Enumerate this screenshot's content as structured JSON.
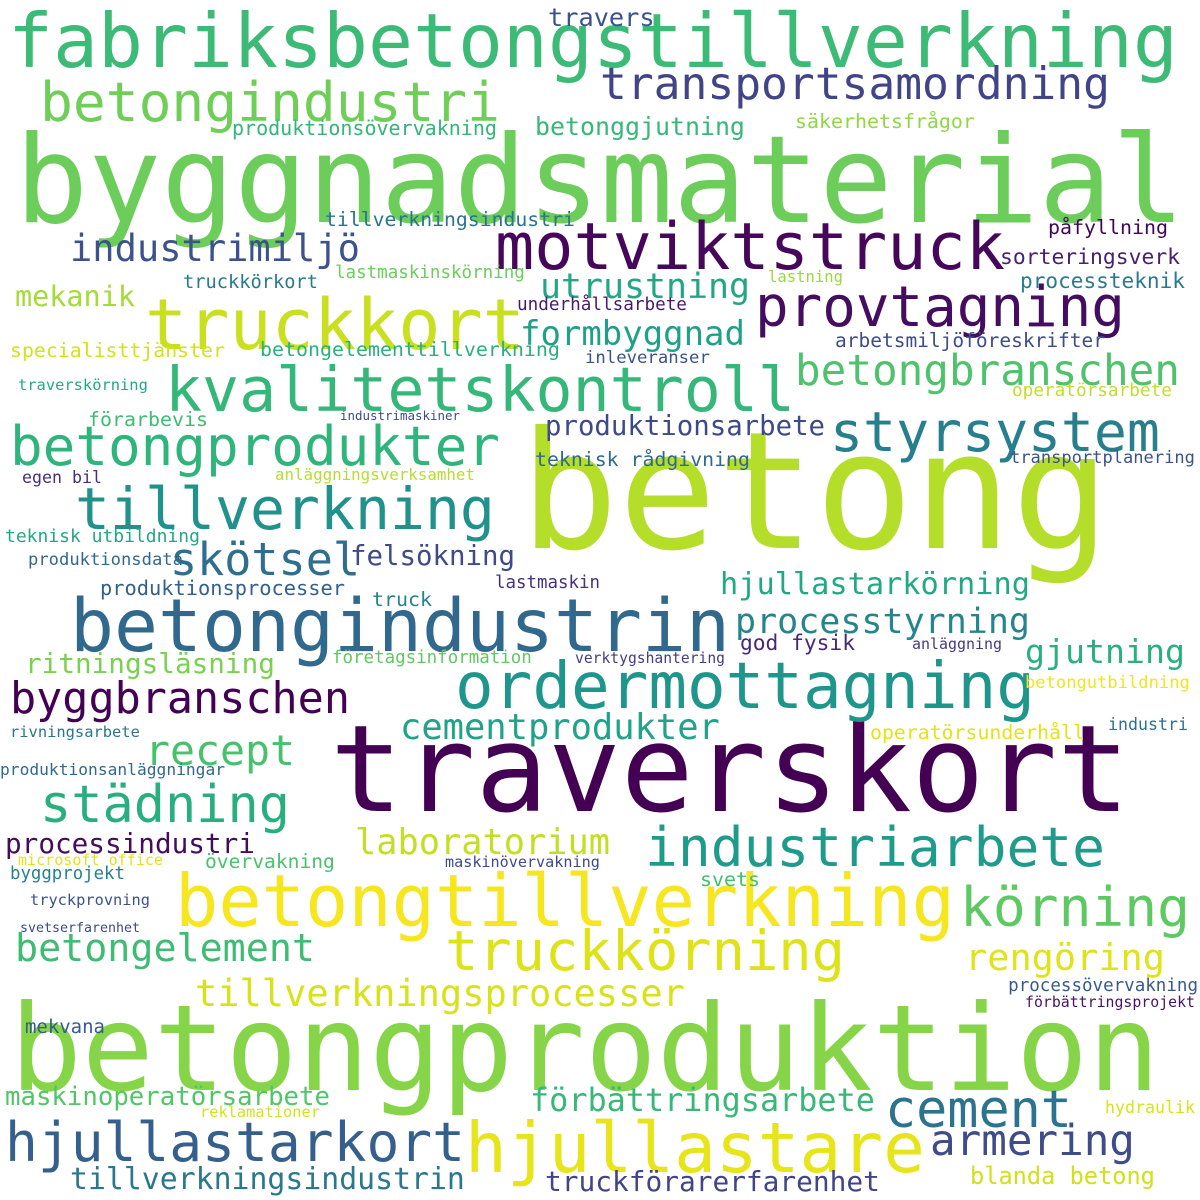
{
  "words": [
    {
      "text": "betong",
      "color": "#b5de2b"
    },
    {
      "text": "byggnadsmaterial",
      "color": "#6ccd5a"
    },
    {
      "text": "fabriksbetongstillverkning",
      "color": "#3bbb75"
    },
    {
      "text": "traverskort",
      "color": "#440154"
    },
    {
      "text": "betongproduktion",
      "color": "#86d549"
    },
    {
      "text": "betongindustrin",
      "color": "#31688e"
    },
    {
      "text": "betongtillverkning",
      "color": "#f5e61f"
    },
    {
      "text": "motviktstruck",
      "color": "#46075a"
    },
    {
      "text": "truckkort",
      "color": "#c8e020"
    },
    {
      "text": "kvalitetskontroll",
      "color": "#35b779"
    },
    {
      "text": "betongindustri",
      "color": "#6ece58"
    },
    {
      "text": "ordermottagning",
      "color": "#1f968b"
    },
    {
      "text": "hjullastare",
      "color": "#e7e419"
    },
    {
      "text": "betongprodukter",
      "color": "#2fb47c"
    },
    {
      "text": "transportsamordning",
      "color": "#414487"
    },
    {
      "text": "tillverkning",
      "color": "#21918c"
    },
    {
      "text": "provtagning",
      "color": "#440d60"
    },
    {
      "text": "styrsystem",
      "color": "#277f8e"
    },
    {
      "text": "industriarbete",
      "color": "#1e9b8a"
    },
    {
      "text": "truckkörning",
      "color": "#dde318"
    },
    {
      "text": "hjullastarkort",
      "color": "#355f8d"
    },
    {
      "text": "körning",
      "color": "#5ec962"
    },
    {
      "text": "byggbranschen",
      "color": "#440154"
    },
    {
      "text": "städning",
      "color": "#29af7f"
    },
    {
      "text": "betongbranschen",
      "color": "#4ec36b"
    },
    {
      "text": "cement",
      "color": "#2c738e"
    },
    {
      "text": "betongelement",
      "color": "#3fbc73"
    },
    {
      "text": "tillverkningsprocesser",
      "color": "#d8e219"
    },
    {
      "text": "armering",
      "color": "#3e4c8a"
    },
    {
      "text": "industrimiljö",
      "color": "#3b528b"
    },
    {
      "text": "processtyrning",
      "color": "#25858e"
    },
    {
      "text": "recept",
      "color": "#48c16e"
    },
    {
      "text": "skötsel",
      "color": "#2e6f8e"
    },
    {
      "text": "utrustning",
      "color": "#22a785"
    },
    {
      "text": "formbyggnad",
      "color": "#1fa188"
    },
    {
      "text": "cementprodukter",
      "color": "#20a386"
    },
    {
      "text": "hjullastarkörning",
      "color": "#22a884"
    },
    {
      "text": "gjutning",
      "color": "#2ab07f"
    },
    {
      "text": "laboratorium",
      "color": "#c2df23"
    },
    {
      "text": "rengöring",
      "color": "#dfe318"
    },
    {
      "text": "tillverkningsindustrin",
      "color": "#2a788e"
    },
    {
      "text": "förbättringsarbete",
      "color": "#37b878"
    },
    {
      "text": "maskinoperatörsarbete",
      "color": "#52c569"
    },
    {
      "text": "truckförarerfarenhet",
      "color": "#414487"
    },
    {
      "text": "blanda betong",
      "color": "#d0e11c"
    },
    {
      "text": "processindustri",
      "color": "#450c5e"
    },
    {
      "text": "produktionsarbete",
      "color": "#3e4989"
    },
    {
      "text": "felsökning",
      "color": "#3e4a89"
    },
    {
      "text": "ritningsläsning",
      "color": "#7ad151"
    },
    {
      "text": "mekanik",
      "color": "#a5db36"
    },
    {
      "text": "betonggjutning",
      "color": "#37b878"
    },
    {
      "text": "teknisk rådgivning",
      "color": "#31688e"
    },
    {
      "text": "produktionsprocesser",
      "color": "#34608d"
    },
    {
      "text": "god fysik",
      "color": "#472878"
    },
    {
      "text": "travers",
      "color": "#3b528b"
    },
    {
      "text": "produktionsövervakning",
      "color": "#33b67a"
    },
    {
      "text": "säkerhetsfrågor",
      "color": "#8fd744"
    },
    {
      "text": "tillverkningsindustri",
      "color": "#2c738e"
    },
    {
      "text": "påfyllning",
      "color": "#3e0751"
    },
    {
      "text": "sorteringsverk",
      "color": "#482071"
    },
    {
      "text": "processteknik",
      "color": "#297a8e"
    },
    {
      "text": "truckkörkort",
      "color": "#2a788e"
    },
    {
      "text": "lastmaskinskörning",
      "color": "#6ccd5a"
    },
    {
      "text": "lastning",
      "color": "#9dd93b"
    },
    {
      "text": "underhållsarbete",
      "color": "#481a6c"
    },
    {
      "text": "arbetsmiljöföreskrifter",
      "color": "#3e4c8a"
    },
    {
      "text": "specialisttjänster",
      "color": "#d2e21b"
    },
    {
      "text": "betongelementtillverkning",
      "color": "#2ab07f"
    },
    {
      "text": "inleveranser",
      "color": "#3b528b"
    },
    {
      "text": "traverskörning",
      "color": "#23a983"
    },
    {
      "text": "operatörsarbete",
      "color": "#c0df25"
    },
    {
      "text": "förarbevis",
      "color": "#3dbc74"
    },
    {
      "text": "industrimaskiner",
      "color": "#3e4a89"
    },
    {
      "text": "anläggningsverksamhet",
      "color": "#b5de2b"
    },
    {
      "text": "transportplanering",
      "color": "#3b528b"
    },
    {
      "text": "egen bil",
      "color": "#472d7b"
    },
    {
      "text": "teknisk utbildning",
      "color": "#22a785"
    },
    {
      "text": "produktionsdata",
      "color": "#31688e"
    },
    {
      "text": "lastmaskin",
      "color": "#46327e"
    },
    {
      "text": "truck",
      "color": "#26828e"
    },
    {
      "text": "företagsinformation",
      "color": "#5ec962"
    },
    {
      "text": "verktygshantering",
      "color": "#433e85"
    },
    {
      "text": "anläggning",
      "color": "#443983"
    },
    {
      "text": "betongutbildning",
      "color": "#f1e51d"
    },
    {
      "text": "rivningsarbete",
      "color": "#2b758e"
    },
    {
      "text": "industri",
      "color": "#2c728e"
    },
    {
      "text": "operatörsunderhåll",
      "color": "#e2e418"
    },
    {
      "text": "produktionsanläggningar",
      "color": "#31688e"
    },
    {
      "text": "microsoft office",
      "color": "#e2e418"
    },
    {
      "text": "övervakning",
      "color": "#4ac16d"
    },
    {
      "text": "maskinövervakning",
      "color": "#3e4a89"
    },
    {
      "text": "byggprojekt",
      "color": "#26828e"
    },
    {
      "text": "svets",
      "color": "#44bf70"
    },
    {
      "text": "tryckprovning",
      "color": "#3b528b"
    },
    {
      "text": "svetserfarenhet",
      "color": "#3e4989"
    },
    {
      "text": "processövervakning",
      "color": "#38598c"
    },
    {
      "text": "förbättringsprojekt",
      "color": "#481467"
    },
    {
      "text": "mekvana",
      "color": "#365c8d"
    },
    {
      "text": "reklamationer",
      "color": "#d2e21b"
    },
    {
      "text": "hydraulik",
      "color": "#d8e219"
    }
  ]
}
